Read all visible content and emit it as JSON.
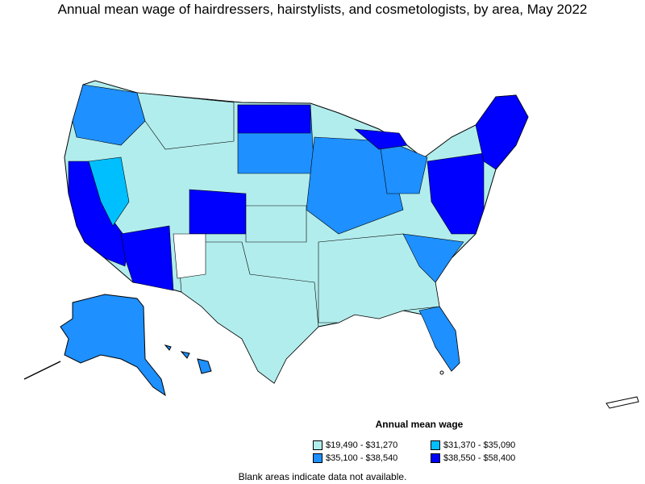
{
  "title": "Annual mean wage of hairdressers, hairstylists, and cosmetologists, by area, May 2022",
  "legend": {
    "title": "Annual mean wage",
    "items": [
      {
        "label": "$19,490 - $31,270",
        "color": "#b2eded"
      },
      {
        "label": "$31,370 - $35,090",
        "color": "#00bfff"
      },
      {
        "label": "$35,100 - $38,540",
        "color": "#1e90ff"
      },
      {
        "label": "$38,550 - $58,400",
        "color": "#0000ff"
      }
    ]
  },
  "footnote": "Blank areas indicate data not available.",
  "colors": {
    "no_data": "#ffffff",
    "border": "#000000"
  }
}
